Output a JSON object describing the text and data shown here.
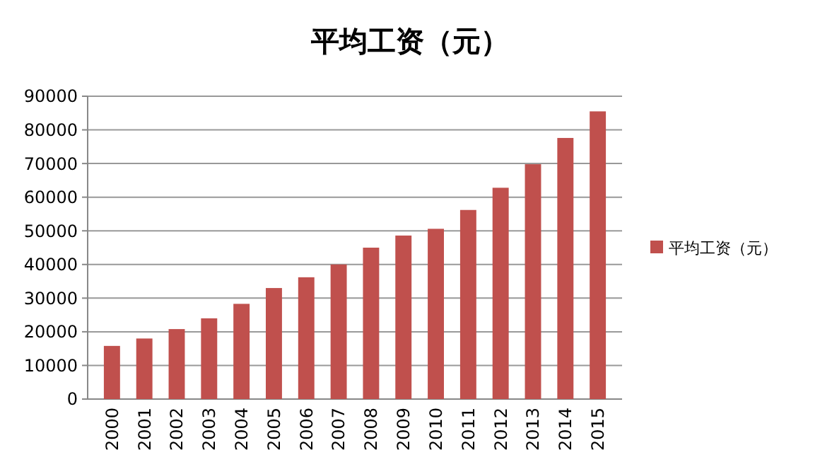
{
  "chart_data": {
    "type": "bar",
    "title": "平均工资（元）",
    "categories": [
      "2000",
      "2001",
      "2002",
      "2003",
      "2004",
      "2005",
      "2006",
      "2007",
      "2008",
      "2009",
      "2010",
      "2011",
      "2012",
      "2013",
      "2014",
      "2015"
    ],
    "series": [
      {
        "name": "平均工资（元）",
        "color": "#c0504d",
        "values": [
          15800,
          18000,
          20800,
          24000,
          28300,
          33000,
          36200,
          40000,
          45000,
          48600,
          50600,
          56200,
          62800,
          69800,
          77600,
          85500
        ]
      }
    ],
    "ylim": [
      0,
      90000
    ],
    "yticks": [
      0,
      10000,
      20000,
      30000,
      40000,
      50000,
      60000,
      70000,
      80000,
      90000
    ],
    "grid": true,
    "legend": "right"
  }
}
